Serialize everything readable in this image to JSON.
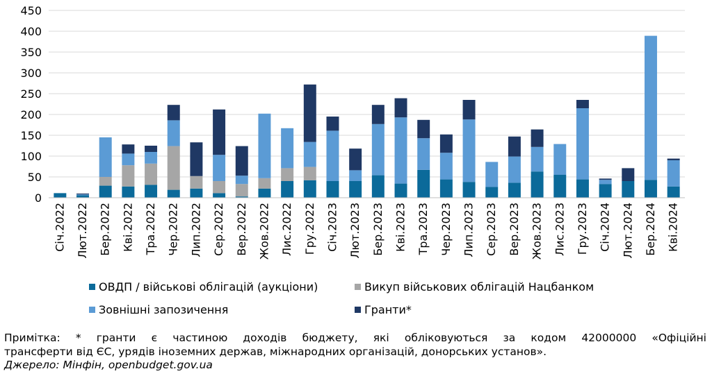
{
  "chart_data": {
    "type": "bar",
    "stacked": true,
    "categories": [
      "Січ.2022",
      "Лют.2022",
      "Бер.2022",
      "Кві.2022",
      "Тра.2022",
      "Чер.2022",
      "Лип.2022",
      "Сер.2022",
      "Вер.2022",
      "Жов.2022",
      "Лис.2022",
      "Гру.2022",
      "Січ.2023",
      "Лют.2023",
      "Бер.2023",
      "Кві.2023",
      "Тра.2023",
      "Чер.2023",
      "Лип.2023",
      "Сер.2023",
      "Вер.2023",
      "Жов.2023",
      "Лис.2023",
      "Гру.2023",
      "Січ.2024",
      "Лют.2024",
      "Бер.2024",
      "Кві.2024"
    ],
    "series": [
      {
        "name": "ОВДП / військові облігацій (аукціони)",
        "color": "#0b6a9a",
        "values": [
          11,
          6,
          29,
          27,
          31,
          19,
          22,
          11,
          3,
          22,
          40,
          42,
          40,
          40,
          54,
          34,
          67,
          44,
          38,
          26,
          36,
          63,
          55,
          44,
          33,
          40,
          43,
          27
        ]
      },
      {
        "name": "Викуп військових облігацій Нацбанком",
        "color": "#a6a6a6",
        "values": [
          0,
          0,
          21,
          51,
          51,
          105,
          30,
          29,
          30,
          25,
          31,
          32,
          0,
          0,
          0,
          0,
          0,
          0,
          0,
          0,
          0,
          0,
          0,
          0,
          0,
          0,
          0,
          0
        ]
      },
      {
        "name": "Зовнішні запозичення",
        "color": "#5b9bd5",
        "values": [
          0,
          2,
          95,
          28,
          28,
          62,
          0,
          63,
          20,
          155,
          96,
          60,
          121,
          26,
          123,
          159,
          76,
          64,
          150,
          60,
          63,
          59,
          74,
          171,
          10,
          0,
          346,
          63
        ]
      },
      {
        "name": "Гранти*",
        "color": "#1f3864",
        "values": [
          0,
          2,
          0,
          22,
          15,
          37,
          81,
          109,
          71,
          0,
          0,
          138,
          34,
          52,
          46,
          46,
          44,
          44,
          47,
          0,
          48,
          42,
          0,
          20,
          3,
          31,
          0,
          4
        ]
      }
    ],
    "ylim": [
      0,
      450
    ],
    "yticks": [
      0,
      50,
      100,
      150,
      200,
      250,
      300,
      350,
      400,
      450
    ],
    "grid": true,
    "legend_position": "bottom",
    "xlabel": "",
    "ylabel": ""
  },
  "note": {
    "line1": "Примітка: * гранти є частиною доходів бюджету, які обліковуються за кодом 42000000 «Офіційні",
    "line2": "трансферти від ЄС, урядів іноземних держав, міжнародних організацій, донорських установ».",
    "source": "Джерело: Мінфін, openbudget.gov.ua"
  }
}
